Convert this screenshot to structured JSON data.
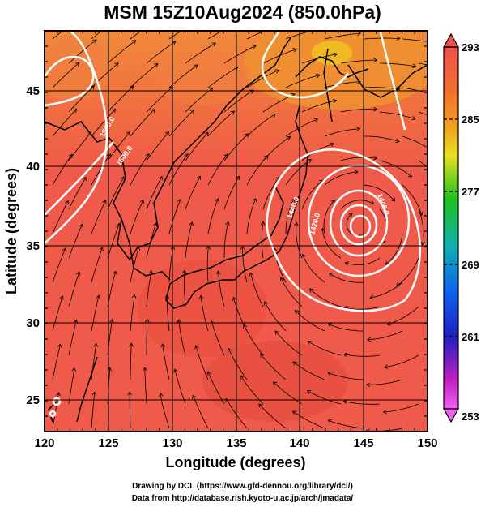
{
  "title": "MSM 15Z10Aug2024 (850.0hPa)",
  "axes": {
    "x_label": "Longitude (degrees)",
    "y_label": "Latitude  (degrees)",
    "x_ticks": [
      "120",
      "125",
      "130",
      "135",
      "140",
      "145",
      "150"
    ],
    "y_ticks": [
      "25",
      "30",
      "35",
      "40",
      "45"
    ]
  },
  "colorbar": {
    "labels": [
      "293",
      "285",
      "277",
      "269",
      "261",
      "253"
    ],
    "colors": [
      "#f05050",
      "#f07030",
      "#f0a020",
      "#e8e020",
      "#20c020",
      "#10b0b0",
      "#1060f0",
      "#2020c0",
      "#c020c0",
      "#f060f0"
    ]
  },
  "contour_labels": [
    "1500.0",
    "1500.0",
    "1440.0",
    "1440.0",
    "1420.0"
  ],
  "credits": {
    "line1": "Drawing by DCL (https://www.gfd-dennou.org/library/dcl/)",
    "line2": "Data from http://database.rish.kyoto-u.ac.jp/arch/jmadata/"
  },
  "colors": {
    "warm_field": "#f05a4a",
    "warm_field_dark": "#e04838",
    "orange_north": "#f08a2a",
    "contour": "#ffffff",
    "coast": "#000000"
  }
}
